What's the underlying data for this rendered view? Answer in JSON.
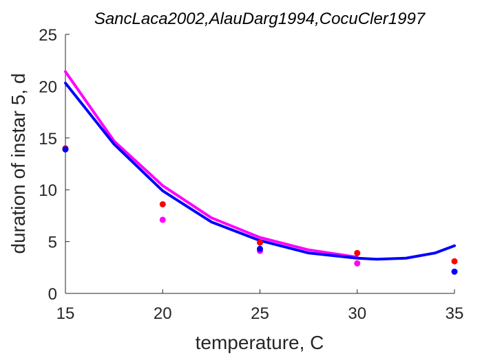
{
  "chart_data": {
    "type": "scatter",
    "title": "SancLaca2002,AlauDarg1994,CocuCler1997",
    "xlabel": "temperature, C",
    "ylabel": "duration of instar 5, d",
    "xlim": [
      15,
      35
    ],
    "ylim": [
      0,
      25
    ],
    "xticks": [
      "15",
      "20",
      "25",
      "30",
      "35"
    ],
    "yticks": [
      "0",
      "5",
      "10",
      "15",
      "20",
      "25"
    ],
    "grid": false,
    "box": false,
    "points": [
      {
        "color": "#ff0000",
        "x": [
          15,
          20,
          25,
          30,
          35
        ],
        "y": [
          14.0,
          8.6,
          4.9,
          3.9,
          3.1
        ]
      },
      {
        "color": "#ff00ff",
        "x": [
          20,
          25,
          30
        ],
        "y": [
          7.1,
          4.1,
          2.9
        ]
      },
      {
        "color": "#0000ff",
        "x": [
          15,
          25,
          35
        ],
        "y": [
          13.9,
          4.3,
          2.1
        ]
      }
    ],
    "lines": [
      {
        "color": "#ff00ff",
        "x": [
          15,
          17.5,
          20,
          22.5,
          25,
          27.5,
          30
        ],
        "y": [
          21.4,
          14.7,
          10.4,
          7.3,
          5.4,
          4.2,
          3.5
        ]
      },
      {
        "color": "#0000ff",
        "x": [
          15,
          17.5,
          20,
          22.5,
          25,
          27.5,
          30,
          31,
          32.5,
          34,
          35
        ],
        "y": [
          20.3,
          14.4,
          9.9,
          6.9,
          5.1,
          3.9,
          3.4,
          3.3,
          3.4,
          3.9,
          4.6
        ]
      }
    ]
  }
}
